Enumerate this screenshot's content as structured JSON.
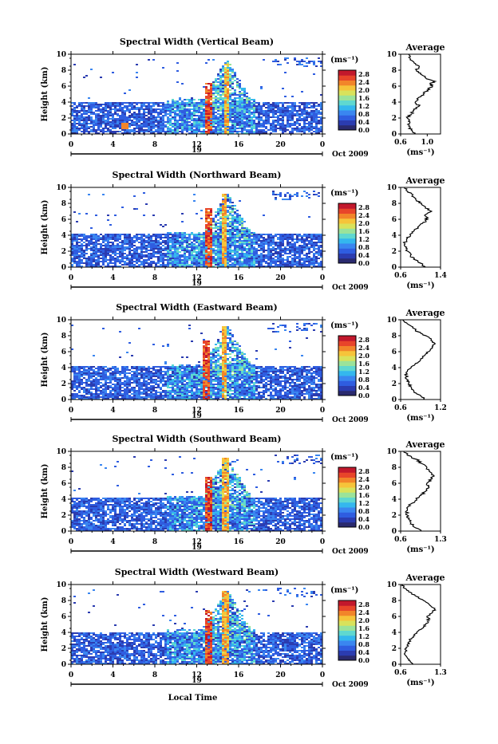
{
  "colors": {
    "colorbar": [
      "#2a2a6e",
      "#2b3cb0",
      "#2f5de0",
      "#3a86f0",
      "#34b7ee",
      "#5fd8d0",
      "#9be39a",
      "#d9e25b",
      "#f6c43a",
      "#f2852a",
      "#e8452a",
      "#c2182c"
    ],
    "axis": "#000000",
    "profile_line": "#000000"
  },
  "shared": {
    "x_tick_labels": [
      "0",
      "4",
      "8",
      "12",
      "16",
      "20",
      "0"
    ],
    "x_lim": [
      0,
      24
    ],
    "y_tick_labels": [
      "0",
      "2",
      "4",
      "6",
      "8",
      "10"
    ],
    "y_lim": [
      0,
      10
    ],
    "y_label": "Height (km)",
    "date_day": "19",
    "date_label": "Oct 2009",
    "colorbar_unit": "(ms⁻¹)",
    "colorbar_ticks": [
      "0.0",
      "0.4",
      "0.8",
      "1.2",
      "1.6",
      "2.0",
      "2.4",
      "2.8"
    ],
    "colorbar_range": [
      0.0,
      3.0
    ],
    "profile_title": "Average",
    "profile_unit": "(ms⁻¹)",
    "x_label": "Local Time"
  },
  "chart_data": [
    {
      "type": "heatmap",
      "title": "Spectral Width (Vertical Beam)",
      "xlabel": "",
      "ylabel": "Height (km)",
      "xlim": [
        0,
        24
      ],
      "ylim": [
        0,
        10
      ],
      "features": [
        {
          "kind": "low_layer",
          "t_start": 0,
          "t_end": 24,
          "h_low": 0.3,
          "h_high": 4.0,
          "value": 0.45
        },
        {
          "kind": "shower",
          "t_start": 12.6,
          "t_end": 13.3,
          "h_top": 6.5,
          "value": 2.9
        },
        {
          "kind": "shower",
          "t_start": 14.4,
          "t_end": 14.9,
          "h_top": 9.0,
          "value": 2.5
        },
        {
          "kind": "patch",
          "t_center": 5.0,
          "h_center": 1.2,
          "value": 2.3
        }
      ],
      "profile": {
        "title": "Average",
        "xlim": [
          0.6,
          1.2
        ],
        "x_ticks": [
          "0.6",
          "1.0"
        ],
        "heights": [
          0,
          0.5,
          1,
          1.5,
          2,
          2.5,
          3,
          3.5,
          4,
          4.5,
          5,
          5.5,
          6,
          6.3,
          6.6,
          7,
          7.5,
          8,
          8.5,
          9,
          9.5,
          10
        ],
        "values": [
          0.8,
          0.76,
          0.72,
          0.74,
          0.7,
          0.76,
          0.8,
          0.88,
          0.82,
          0.86,
          0.94,
          1.0,
          1.08,
          1.04,
          1.12,
          0.98,
          0.9,
          0.84,
          0.88,
          0.8,
          0.74,
          0.72
        ]
      }
    },
    {
      "type": "heatmap",
      "title": "Spectral Width (Northward Beam)",
      "xlabel": "",
      "ylabel": "Height (km)",
      "xlim": [
        0,
        24
      ],
      "ylim": [
        0,
        10
      ],
      "features": [
        {
          "kind": "low_layer",
          "t_start": 0,
          "t_end": 24,
          "h_low": 0.2,
          "h_high": 4.2,
          "value": 0.45
        },
        {
          "kind": "shower",
          "t_start": 12.6,
          "t_end": 13.3,
          "h_top": 7.5,
          "value": 2.9
        },
        {
          "kind": "shower",
          "t_start": 14.2,
          "t_end": 14.8,
          "h_top": 9.3,
          "value": 2.5
        }
      ],
      "profile": {
        "title": "Average",
        "xlim": [
          0.6,
          1.4
        ],
        "x_ticks": [
          "0.6",
          "1.4"
        ],
        "heights": [
          0,
          0.5,
          1,
          1.5,
          2,
          2.5,
          3,
          3.5,
          4,
          4.5,
          5,
          5.5,
          6,
          6.5,
          7,
          7.5,
          8,
          8.5,
          9,
          9.5,
          10
        ],
        "values": [
          1.1,
          1.0,
          0.86,
          0.8,
          0.74,
          0.72,
          0.68,
          0.72,
          0.8,
          0.86,
          0.94,
          1.04,
          1.14,
          1.08,
          1.22,
          1.1,
          1.02,
          0.9,
          0.84,
          0.74,
          0.68
        ]
      }
    },
    {
      "type": "heatmap",
      "title": "Spectral Width (Eastward Beam)",
      "xlabel": "",
      "ylabel": "Height (km)",
      "xlim": [
        0,
        24
      ],
      "ylim": [
        0,
        10
      ],
      "features": [
        {
          "kind": "low_layer",
          "t_start": 0,
          "t_end": 24,
          "h_low": 0.2,
          "h_high": 4.3,
          "value": 0.45
        },
        {
          "kind": "shower",
          "t_start": 12.5,
          "t_end": 13.2,
          "h_top": 7.5,
          "value": 2.9
        },
        {
          "kind": "shower",
          "t_start": 14.2,
          "t_end": 14.8,
          "h_top": 9.3,
          "value": 2.5
        }
      ],
      "profile": {
        "title": "Average",
        "xlim": [
          0.6,
          1.2
        ],
        "x_ticks": [
          "0.6",
          "1.2"
        ],
        "heights": [
          0,
          0.5,
          1,
          1.5,
          2,
          2.5,
          3,
          3.5,
          4,
          4.5,
          5,
          5.5,
          6,
          6.5,
          7,
          7.5,
          8,
          8.5,
          9,
          9.5,
          10
        ],
        "values": [
          0.96,
          0.9,
          0.8,
          0.76,
          0.72,
          0.7,
          0.68,
          0.7,
          0.76,
          0.82,
          0.9,
          0.96,
          1.02,
          1.08,
          1.12,
          1.06,
          0.98,
          0.86,
          0.78,
          0.7,
          0.64
        ]
      }
    },
    {
      "type": "heatmap",
      "title": "Spectral Width (Southward Beam)",
      "xlabel": "",
      "ylabel": "Height (km)",
      "xlim": [
        0,
        24
      ],
      "ylim": [
        0,
        10
      ],
      "features": [
        {
          "kind": "low_layer",
          "t_start": 0,
          "t_end": 24,
          "h_low": 0.2,
          "h_high": 4.2,
          "value": 0.45
        },
        {
          "kind": "shower",
          "t_start": 12.6,
          "t_end": 13.3,
          "h_top": 7.0,
          "value": 2.9
        },
        {
          "kind": "shower",
          "t_start": 14.3,
          "t_end": 14.9,
          "h_top": 9.3,
          "value": 2.5
        }
      ],
      "profile": {
        "title": "Average",
        "xlim": [
          0.6,
          1.3
        ],
        "x_ticks": [
          "0.6",
          "1.3"
        ],
        "heights": [
          0,
          0.5,
          1,
          1.5,
          2,
          2.5,
          3,
          3.5,
          4,
          4.5,
          5,
          5.5,
          6,
          6.5,
          7,
          7.5,
          8,
          8.5,
          9,
          9.5,
          10
        ],
        "values": [
          0.96,
          0.84,
          0.78,
          0.74,
          0.72,
          0.7,
          0.72,
          0.8,
          0.88,
          0.96,
          1.04,
          1.1,
          1.06,
          1.14,
          1.18,
          1.1,
          1.06,
          0.96,
          0.88,
          0.72,
          0.66
        ]
      }
    },
    {
      "type": "heatmap",
      "title": "Spectral Width (Westward Beam)",
      "xlabel": "Local Time",
      "ylabel": "Height (km)",
      "xlim": [
        0,
        24
      ],
      "ylim": [
        0,
        10
      ],
      "features": [
        {
          "kind": "low_layer",
          "t_start": 0,
          "t_end": 24,
          "h_low": 0.2,
          "h_high": 4.0,
          "value": 0.45
        },
        {
          "kind": "shower",
          "t_start": 12.6,
          "t_end": 13.3,
          "h_top": 7.0,
          "value": 2.9
        },
        {
          "kind": "shower",
          "t_start": 14.3,
          "t_end": 14.9,
          "h_top": 9.3,
          "value": 2.5
        }
      ],
      "profile": {
        "title": "Average",
        "xlim": [
          0.6,
          1.3
        ],
        "x_ticks": [
          "0.6",
          "1.3"
        ],
        "heights": [
          0,
          0.5,
          1,
          1.5,
          2,
          2.5,
          3,
          3.5,
          4,
          4.5,
          5,
          5.5,
          6,
          6.5,
          7,
          7.5,
          8,
          8.5,
          9,
          9.5,
          10
        ],
        "values": [
          0.82,
          0.74,
          0.7,
          0.68,
          0.7,
          0.72,
          0.76,
          0.82,
          0.88,
          0.98,
          1.04,
          1.1,
          1.06,
          1.16,
          1.2,
          1.1,
          1.0,
          0.88,
          0.78,
          0.68,
          0.64
        ]
      }
    }
  ]
}
